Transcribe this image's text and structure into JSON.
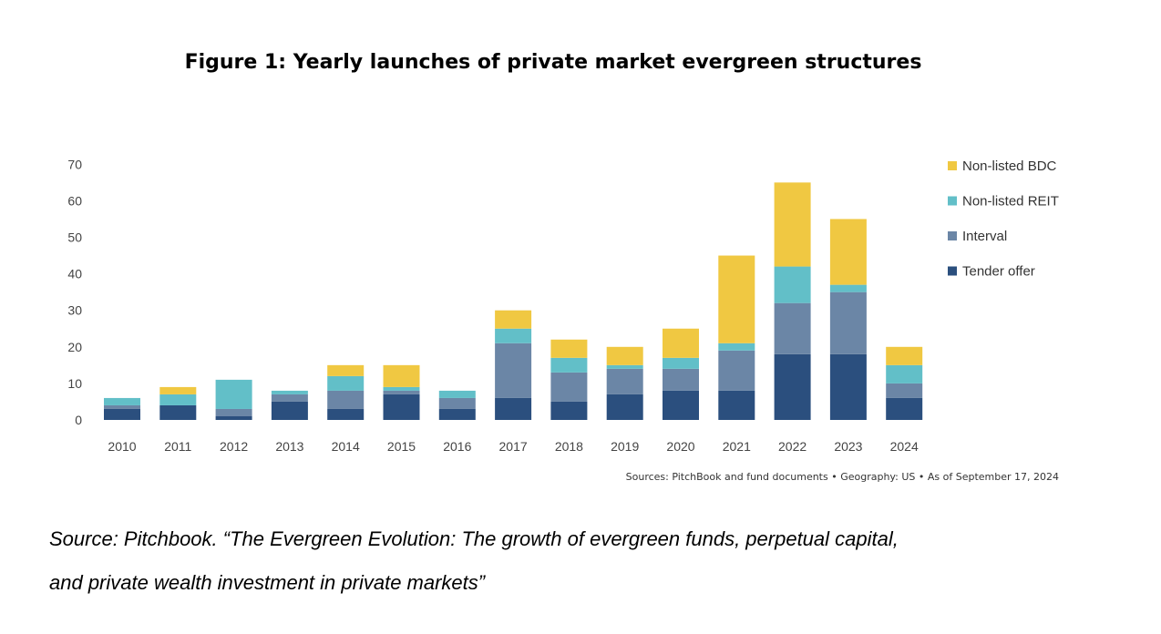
{
  "figure_title": "Figure 1: Yearly launches of private market evergreen structures",
  "sources_line": "Sources: PitchBook and fund documents  •  Geography: US  •  As of September 17, 2024",
  "caption": {
    "line1": "Source: Pitchbook. “The Evergreen Evolution: The growth of evergreen funds, perpetual capital,",
    "line2": "and private wealth investment in private markets”"
  },
  "chart_data": {
    "type": "bar",
    "stacked": true,
    "categories": [
      "2010",
      "2011",
      "2012",
      "2013",
      "2014",
      "2015",
      "2016",
      "2017",
      "2018",
      "2019",
      "2020",
      "2021",
      "2022",
      "2023",
      "2024"
    ],
    "series": [
      {
        "name": "Tender offer",
        "color": "#2B4F7E",
        "values": [
          3,
          4,
          1,
          5,
          3,
          7,
          3,
          6,
          5,
          7,
          8,
          8,
          18,
          18,
          6
        ]
      },
      {
        "name": "Interval",
        "color": "#6B86A6",
        "values": [
          1,
          0,
          2,
          2,
          5,
          1,
          3,
          15,
          8,
          7,
          6,
          11,
          14,
          17,
          4
        ]
      },
      {
        "name": "Non-listed REIT",
        "color": "#62BFC8",
        "values": [
          2,
          3,
          8,
          1,
          4,
          1,
          2,
          4,
          4,
          1,
          3,
          2,
          10,
          2,
          5
        ]
      },
      {
        "name": "Non-listed BDC",
        "color": "#F0C842",
        "values": [
          0,
          2,
          0,
          0,
          3,
          6,
          0,
          5,
          5,
          5,
          8,
          24,
          23,
          18,
          5
        ]
      }
    ],
    "legend_order": [
      "Non-listed BDC",
      "Non-listed REIT",
      "Interval",
      "Tender offer"
    ],
    "legend_position": "right",
    "ylim": [
      0,
      70
    ],
    "yticks": [
      "0",
      "10",
      "20",
      "30",
      "40",
      "50",
      "60",
      "70"
    ],
    "grid": false,
    "xlabel": "",
    "ylabel": ""
  }
}
